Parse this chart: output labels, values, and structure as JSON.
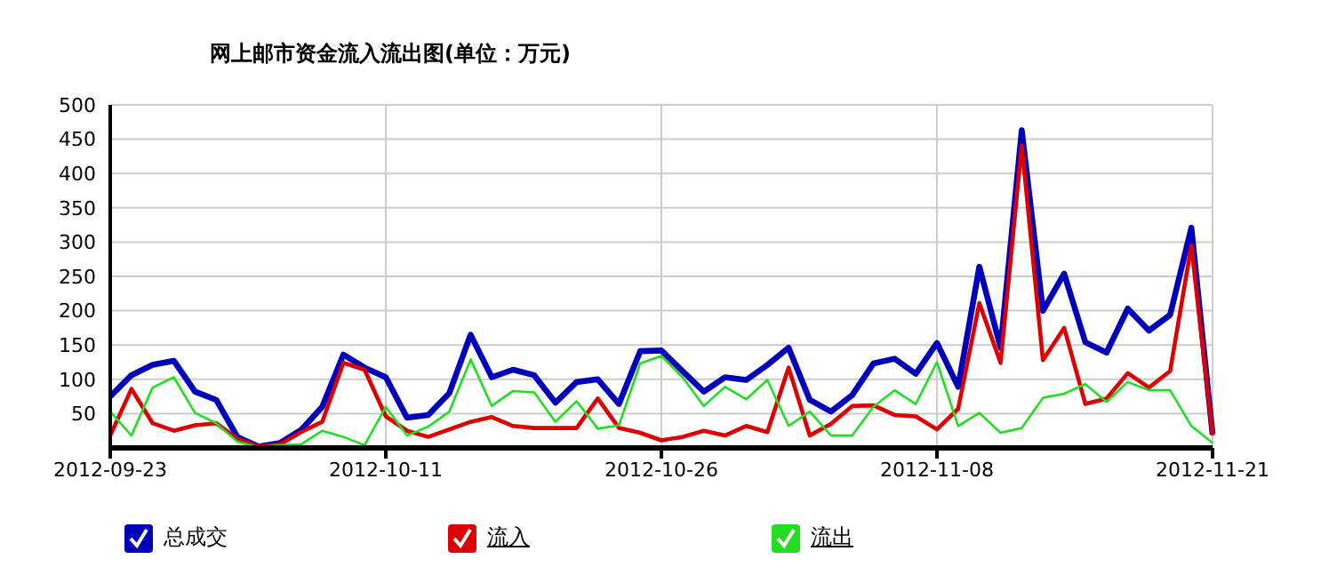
{
  "chart_data": {
    "type": "line",
    "title": "网上邮市资金流入流出图(单位：万元)",
    "categories": [
      "2012-09-23",
      null,
      null,
      null,
      null,
      null,
      null,
      null,
      null,
      null,
      null,
      null,
      null,
      "2012-10-11",
      null,
      null,
      null,
      null,
      null,
      null,
      null,
      null,
      null,
      null,
      null,
      null,
      "2012-10-26",
      null,
      null,
      null,
      null,
      null,
      null,
      null,
      null,
      null,
      null,
      null,
      null,
      "2012-11-08",
      null,
      null,
      null,
      null,
      null,
      null,
      null,
      null,
      null,
      null,
      null,
      null,
      "2012-11-21"
    ],
    "series": [
      {
        "name": "总成交",
        "color": "#0000bb",
        "values": [
          75,
          106,
          121,
          127,
          82,
          70,
          16,
          2,
          7,
          26,
          60,
          136,
          117,
          103,
          44,
          48,
          80,
          165,
          103,
          114,
          106,
          66,
          96,
          100,
          64,
          141,
          142,
          112,
          82,
          103,
          99,
          121,
          146,
          70,
          53,
          77,
          123,
          130,
          108,
          153,
          89,
          264,
          146,
          463,
          200,
          254,
          154,
          139,
          203,
          171,
          194,
          321,
          20
        ]
      },
      {
        "name": "流入",
        "color": "#dd0000",
        "values": [
          18,
          86,
          36,
          25,
          33,
          36,
          13,
          2,
          5,
          23,
          38,
          124,
          114,
          46,
          25,
          16,
          27,
          38,
          45,
          32,
          29,
          29,
          29,
          72,
          29,
          22,
          11,
          16,
          25,
          18,
          32,
          23,
          117,
          18,
          35,
          61,
          62,
          48,
          46,
          27,
          57,
          211,
          124,
          441,
          128,
          175,
          64,
          72,
          109,
          88,
          112,
          295,
          18
        ]
      },
      {
        "name": "流出",
        "color": "#22dd22",
        "values": [
          53,
          18,
          88,
          103,
          51,
          36,
          9,
          1,
          4,
          5,
          25,
          16,
          4,
          60,
          18,
          31,
          53,
          129,
          61,
          83,
          81,
          38,
          68,
          28,
          33,
          123,
          134,
          103,
          61,
          89,
          71,
          99,
          32,
          53,
          18,
          18,
          60,
          84,
          64,
          125,
          32,
          51,
          22,
          29,
          73,
          79,
          93,
          67,
          96,
          84,
          84,
          32,
          7
        ]
      }
    ],
    "ylim": [
      0,
      500
    ],
    "yticks": [
      50,
      100,
      150,
      200,
      250,
      300,
      350,
      400,
      450,
      500
    ],
    "grid": true,
    "legend": "bottom",
    "marker": "none",
    "line_style": "solid"
  }
}
